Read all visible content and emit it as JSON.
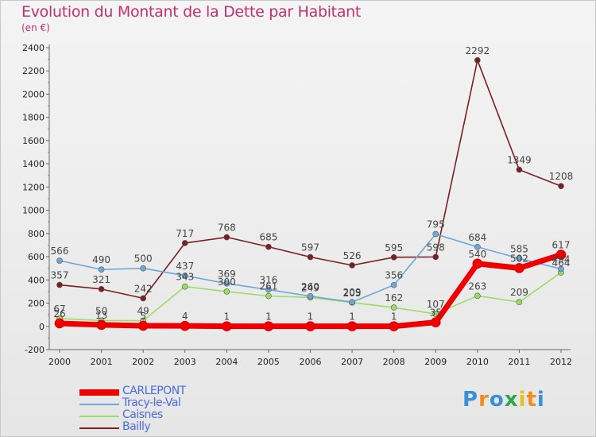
{
  "title": "Evolution du Montant de la Dette par Habitant",
  "subtitle": "(en €)",
  "brand": {
    "letters": [
      "P",
      "r",
      "o",
      "x",
      "i",
      "t",
      "i"
    ],
    "colors": [
      "#3b8fd9",
      "#f18b1f",
      "#3b8fd9",
      "#2aa84a",
      "#e8c21a",
      "#f18b1f",
      "#3b8fd9"
    ]
  },
  "chart_data": {
    "type": "line",
    "x": [
      "2000",
      "2001",
      "2002",
      "2003",
      "2004",
      "2005",
      "2006",
      "2007",
      "2008",
      "2009",
      "2010",
      "2011",
      "2012"
    ],
    "ylim": [
      -200,
      2400
    ],
    "yticks": [
      -200,
      0,
      200,
      400,
      600,
      800,
      1000,
      1200,
      1400,
      1600,
      1800,
      2000,
      2200,
      2400
    ],
    "grid": false,
    "legend": "bottom-left",
    "series": [
      {
        "name": "CARLEPONT",
        "color": "#ee0000",
        "values": [
          26,
          13,
          5,
          4,
          1,
          1,
          1,
          1,
          1,
          35,
          540,
          502,
          617
        ],
        "labels": [
          "26",
          "13",
          "5",
          "4",
          "1",
          "1",
          "1",
          "1",
          "1",
          "35",
          "540",
          "502",
          "617"
        ]
      },
      {
        "name": "Tracy-le-Val",
        "color": "#6ea8d8",
        "values": [
          566,
          490,
          500,
          437,
          369,
          316,
          260,
          209,
          356,
          795,
          684,
          585,
          494
        ],
        "labels": [
          "566",
          "490",
          "500",
          "437",
          "369",
          "316",
          "260",
          "209",
          "356",
          "795",
          "684",
          "585",
          "494"
        ]
      },
      {
        "name": "Caisnes",
        "color": "#99dd66",
        "values": [
          67,
          50,
          49,
          343,
          300,
          261,
          249,
          205,
          162,
          107,
          263,
          209,
          464
        ],
        "labels": [
          "67",
          "50",
          "49",
          "343",
          "300",
          "261",
          "249",
          "205",
          "162",
          "107",
          "263",
          "209",
          "464"
        ]
      },
      {
        "name": "Bailly",
        "color": "#7a1f22",
        "values": [
          357,
          321,
          242,
          717,
          768,
          685,
          597,
          526,
          595,
          598,
          2292,
          1349,
          1208
        ],
        "labels": [
          "357",
          "321",
          "242",
          "717",
          "768",
          "685",
          "597",
          "526",
          "595",
          "598",
          "2292",
          "1349",
          "1208"
        ]
      }
    ]
  }
}
